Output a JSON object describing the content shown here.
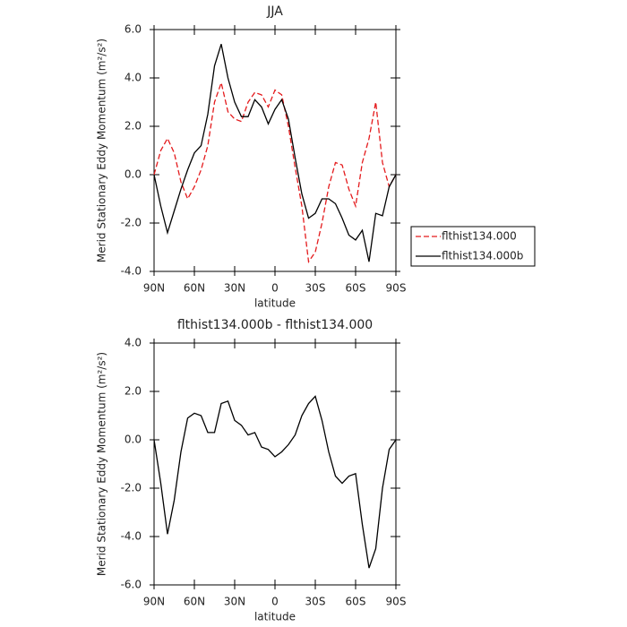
{
  "chart_data": [
    {
      "type": "line",
      "title": "JJA",
      "xlabel": "latitude",
      "ylabel": "Merid Stationary Eddy Momentum (m²/s²)",
      "x": [
        90,
        85,
        80,
        75,
        70,
        65,
        60,
        55,
        50,
        45,
        40,
        35,
        30,
        25,
        20,
        15,
        10,
        5,
        0,
        -5,
        -10,
        -15,
        -20,
        -25,
        -30,
        -35,
        -40,
        -45,
        -50,
        -55,
        -60,
        -65,
        -70,
        -75,
        -80,
        -85,
        -90
      ],
      "xlim": [
        90,
        -90
      ],
      "xticks": [
        {
          "value": 90,
          "label": "90N"
        },
        {
          "value": 60,
          "label": "60N"
        },
        {
          "value": 30,
          "label": "30N"
        },
        0,
        {
          "value": -30,
          "label": "30S"
        },
        {
          "value": -60,
          "label": "60S"
        },
        {
          "value": -90,
          "label": "90S"
        }
      ],
      "ylim": [
        -4,
        6
      ],
      "yticks": [
        {
          "value": -4,
          "label": "-4.0"
        },
        {
          "value": -2,
          "label": "-2.0"
        },
        {
          "value": 0,
          "label": "0.0"
        },
        {
          "value": 2,
          "label": "2.0"
        },
        {
          "value": 4,
          "label": "4.0"
        },
        {
          "value": 6,
          "label": "6.0"
        }
      ],
      "legend": "right",
      "series": [
        {
          "name": "flthist134.000",
          "color": "#e41a1c",
          "linestyle": "dashed",
          "values": [
            0,
            1.0,
            1.5,
            0.9,
            -0.3,
            -1.0,
            -0.5,
            0.2,
            1.2,
            3.0,
            3.8,
            2.6,
            2.3,
            2.2,
            3.0,
            3.4,
            3.3,
            2.8,
            3.5,
            3.3,
            2.0,
            0.3,
            -1.3,
            -3.6,
            -3.2,
            -2.0,
            -0.5,
            0.5,
            0.4,
            -0.6,
            -1.3,
            0.5,
            1.5,
            3.0,
            0.5,
            -0.5,
            0
          ]
        },
        {
          "name": "flthist134.000b",
          "color": "#000000",
          "linestyle": "solid",
          "values": [
            0,
            -1.3,
            -2.4,
            -1.5,
            -0.6,
            0.2,
            0.9,
            1.2,
            2.5,
            4.5,
            5.4,
            4.0,
            3.0,
            2.4,
            2.4,
            3.1,
            2.8,
            2.1,
            2.7,
            3.1,
            2.3,
            0.7,
            -0.8,
            -1.8,
            -1.6,
            -1.0,
            -1.0,
            -1.2,
            -1.8,
            -2.5,
            -2.7,
            -2.3,
            -3.6,
            -1.6,
            -1.7,
            -0.5,
            0
          ]
        }
      ]
    },
    {
      "type": "line",
      "title": "flthist134.000b - flthist134.000",
      "xlabel": "latitude",
      "ylabel": "Merid Stationary Eddy Momentum (m²/s²)",
      "x": [
        90,
        85,
        80,
        75,
        70,
        65,
        60,
        55,
        50,
        45,
        40,
        35,
        30,
        25,
        20,
        15,
        10,
        5,
        0,
        -5,
        -10,
        -15,
        -20,
        -25,
        -30,
        -35,
        -40,
        -45,
        -50,
        -55,
        -60,
        -65,
        -70,
        -75,
        -80,
        -85,
        -90
      ],
      "xlim": [
        90,
        -90
      ],
      "xticks": [
        {
          "value": 90,
          "label": "90N"
        },
        {
          "value": 60,
          "label": "60N"
        },
        {
          "value": 30,
          "label": "30N"
        },
        0,
        {
          "value": -30,
          "label": "30S"
        },
        {
          "value": -60,
          "label": "60S"
        },
        {
          "value": -90,
          "label": "90S"
        }
      ],
      "ylim": [
        -6,
        4
      ],
      "yticks": [
        {
          "value": -6,
          "label": "-6.0"
        },
        {
          "value": -4,
          "label": "-4.0"
        },
        {
          "value": -2,
          "label": "-2.0"
        },
        {
          "value": 0,
          "label": "0.0"
        },
        {
          "value": 2,
          "label": "2.0"
        },
        {
          "value": 4,
          "label": "4.0"
        }
      ],
      "series": [
        {
          "color": "#000000",
          "linestyle": "solid",
          "values": [
            0,
            -1.8,
            -3.9,
            -2.5,
            -0.5,
            0.9,
            1.1,
            1.0,
            0.3,
            0.3,
            1.5,
            1.6,
            0.8,
            0.6,
            0.2,
            0.3,
            -0.3,
            -0.4,
            -0.7,
            -0.5,
            -0.2,
            0.2,
            1.0,
            1.5,
            1.8,
            0.8,
            -0.5,
            -1.5,
            -1.8,
            -1.5,
            -1.4,
            -3.5,
            -5.3,
            -4.5,
            -2.0,
            -0.4,
            0
          ]
        }
      ]
    }
  ]
}
